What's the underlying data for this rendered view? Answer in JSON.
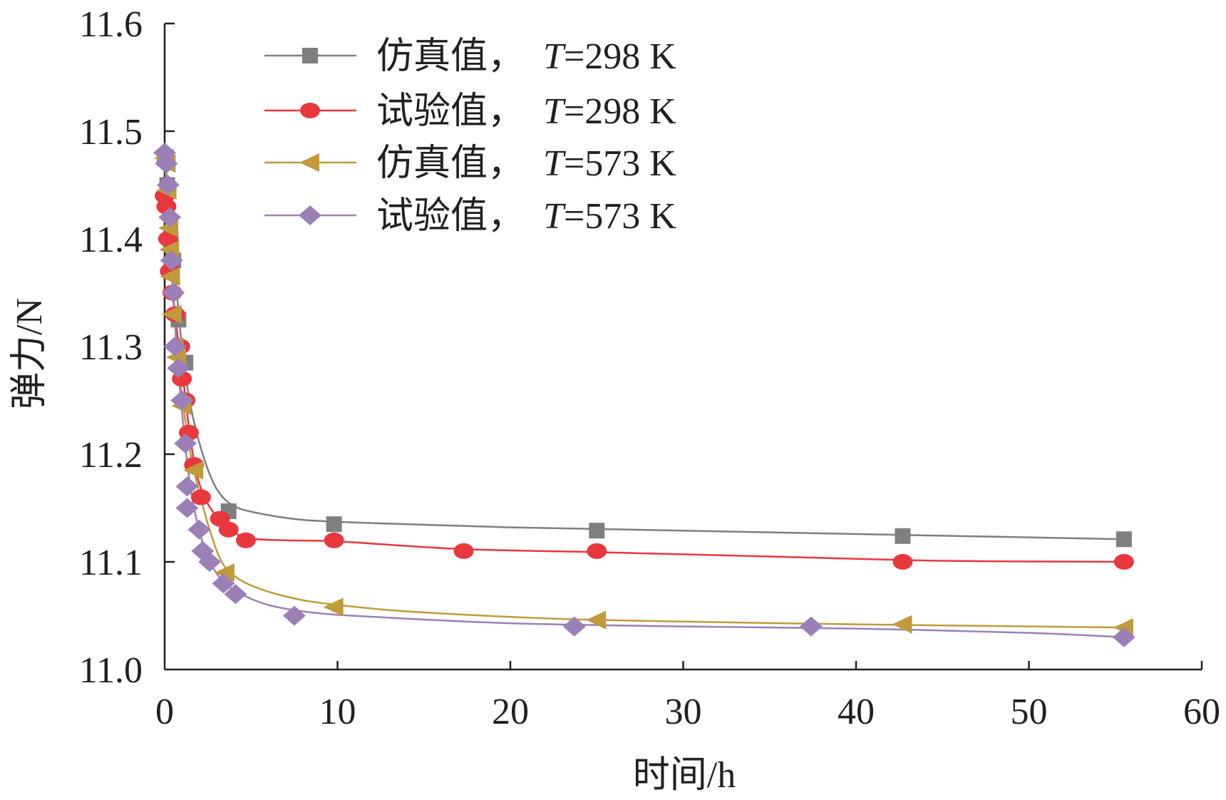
{
  "chart_data": {
    "type": "line",
    "title": "",
    "xlabel": "时间/h",
    "ylabel": "弹力/N",
    "xlim": [
      0,
      60
    ],
    "ylim": [
      11.0,
      11.6
    ],
    "x_ticks": [
      "0",
      "10",
      "20",
      "30",
      "40",
      "50",
      "60"
    ],
    "y_ticks": [
      "11.0",
      "11.1",
      "11.2",
      "11.3",
      "11.4",
      "11.5",
      "11.6"
    ],
    "grid": false,
    "legend_position": "top-left",
    "series": [
      {
        "label_prefix": "仿真值，",
        "label_var": "T",
        "label_value": "=298 K",
        "color": "#7f7f7f",
        "marker": "square",
        "points": [
          [
            0.0,
            11.475
          ],
          [
            0.15,
            11.45
          ],
          [
            0.35,
            11.4
          ],
          [
            0.5,
            11.38
          ],
          [
            0.8,
            11.325
          ],
          [
            1.2,
            11.285
          ],
          [
            3.7,
            11.147
          ],
          [
            9.8,
            11.135
          ],
          [
            25.0,
            11.129
          ],
          [
            42.7,
            11.124
          ],
          [
            55.5,
            11.121
          ]
        ],
        "curve": [
          [
            0.0,
            11.475
          ],
          [
            0.3,
            11.43
          ],
          [
            0.6,
            11.37
          ],
          [
            1.0,
            11.3
          ],
          [
            1.5,
            11.245
          ],
          [
            2.2,
            11.2
          ],
          [
            3.0,
            11.168
          ],
          [
            4.0,
            11.152
          ],
          [
            5.5,
            11.145
          ],
          [
            8.0,
            11.139
          ],
          [
            12.0,
            11.136
          ],
          [
            20.0,
            11.132
          ],
          [
            30.0,
            11.129
          ],
          [
            42.7,
            11.125
          ],
          [
            55.5,
            11.121
          ]
        ]
      },
      {
        "label_prefix": "试验值，",
        "label_var": "T",
        "label_value": "=298 K",
        "color": "#e8383d",
        "marker": "circle",
        "points": [
          [
            0.0,
            11.44
          ],
          [
            0.1,
            11.43
          ],
          [
            0.2,
            11.4
          ],
          [
            0.3,
            11.37
          ],
          [
            0.45,
            11.35
          ],
          [
            0.6,
            11.33
          ],
          [
            0.9,
            11.3
          ],
          [
            1.0,
            11.27
          ],
          [
            1.2,
            11.25
          ],
          [
            1.4,
            11.22
          ],
          [
            1.7,
            11.19
          ],
          [
            2.1,
            11.16
          ],
          [
            3.2,
            11.14
          ],
          [
            3.7,
            11.13
          ],
          [
            4.7,
            11.12
          ],
          [
            9.8,
            11.12
          ],
          [
            17.3,
            11.11
          ],
          [
            25.0,
            11.11
          ],
          [
            42.7,
            11.1
          ],
          [
            55.5,
            11.1
          ]
        ],
        "curve": [
          [
            0.0,
            11.44
          ],
          [
            0.3,
            11.39
          ],
          [
            0.6,
            11.33
          ],
          [
            1.0,
            11.28
          ],
          [
            1.4,
            11.225
          ],
          [
            1.8,
            11.185
          ],
          [
            2.3,
            11.16
          ],
          [
            3.0,
            11.142
          ],
          [
            3.8,
            11.13
          ],
          [
            4.8,
            11.122
          ],
          [
            7.0,
            11.12
          ],
          [
            10.0,
            11.119
          ],
          [
            17.0,
            11.112
          ],
          [
            25.0,
            11.109
          ],
          [
            35.0,
            11.105
          ],
          [
            45.0,
            11.101
          ],
          [
            55.5,
            11.1
          ]
        ]
      },
      {
        "label_prefix": "仿真值，",
        "label_var": "T",
        "label_value": "=573 K",
        "color": "#c19a3c",
        "marker": "triangle-left",
        "points": [
          [
            0.0,
            11.475
          ],
          [
            0.1,
            11.47
          ],
          [
            0.15,
            11.445
          ],
          [
            0.25,
            11.41
          ],
          [
            0.3,
            11.39
          ],
          [
            0.35,
            11.365
          ],
          [
            0.45,
            11.33
          ],
          [
            0.55,
            11.3
          ],
          [
            0.7,
            11.29
          ],
          [
            1.0,
            11.245
          ],
          [
            1.7,
            11.185
          ],
          [
            3.5,
            11.09
          ],
          [
            9.8,
            11.058
          ],
          [
            25.0,
            11.046
          ],
          [
            42.7,
            11.042
          ],
          [
            55.5,
            11.039
          ]
        ],
        "curve": [
          [
            0.0,
            11.475
          ],
          [
            0.3,
            11.4
          ],
          [
            0.6,
            11.32
          ],
          [
            1.0,
            11.255
          ],
          [
            1.5,
            11.2
          ],
          [
            2.0,
            11.165
          ],
          [
            2.6,
            11.13
          ],
          [
            3.3,
            11.1
          ],
          [
            4.2,
            11.085
          ],
          [
            5.5,
            11.075
          ],
          [
            7.5,
            11.066
          ],
          [
            10.0,
            11.06
          ],
          [
            15.0,
            11.053
          ],
          [
            25.0,
            11.046
          ],
          [
            40.0,
            11.042
          ],
          [
            55.5,
            11.039
          ]
        ]
      },
      {
        "label_prefix": "试验值，",
        "label_var": "T",
        "label_value": "=573 K",
        "color": "#9b80b8",
        "marker": "diamond",
        "points": [
          [
            0.0,
            11.48
          ],
          [
            0.1,
            11.47
          ],
          [
            0.2,
            11.45
          ],
          [
            0.3,
            11.42
          ],
          [
            0.4,
            11.38
          ],
          [
            0.5,
            11.35
          ],
          [
            0.6,
            11.3
          ],
          [
            0.8,
            11.28
          ],
          [
            1.0,
            11.25
          ],
          [
            1.2,
            11.21
          ],
          [
            1.3,
            11.17
          ],
          [
            1.3,
            11.15
          ],
          [
            2.0,
            11.13
          ],
          [
            2.2,
            11.11
          ],
          [
            2.6,
            11.1
          ],
          [
            3.4,
            11.08
          ],
          [
            4.1,
            11.07
          ],
          [
            7.5,
            11.05
          ],
          [
            23.7,
            11.04
          ],
          [
            37.4,
            11.04
          ],
          [
            55.5,
            11.03
          ]
        ],
        "curve": [
          [
            0.0,
            11.48
          ],
          [
            0.3,
            11.42
          ],
          [
            0.6,
            11.32
          ],
          [
            1.0,
            11.24
          ],
          [
            1.4,
            11.18
          ],
          [
            1.9,
            11.135
          ],
          [
            2.5,
            11.105
          ],
          [
            3.2,
            11.085
          ],
          [
            4.2,
            11.072
          ],
          [
            6.0,
            11.06
          ],
          [
            8.5,
            11.053
          ],
          [
            12.0,
            11.049
          ],
          [
            20.0,
            11.043
          ],
          [
            30.0,
            11.04
          ],
          [
            40.0,
            11.038
          ],
          [
            50.0,
            11.034
          ],
          [
            55.5,
            11.03
          ]
        ]
      }
    ]
  }
}
